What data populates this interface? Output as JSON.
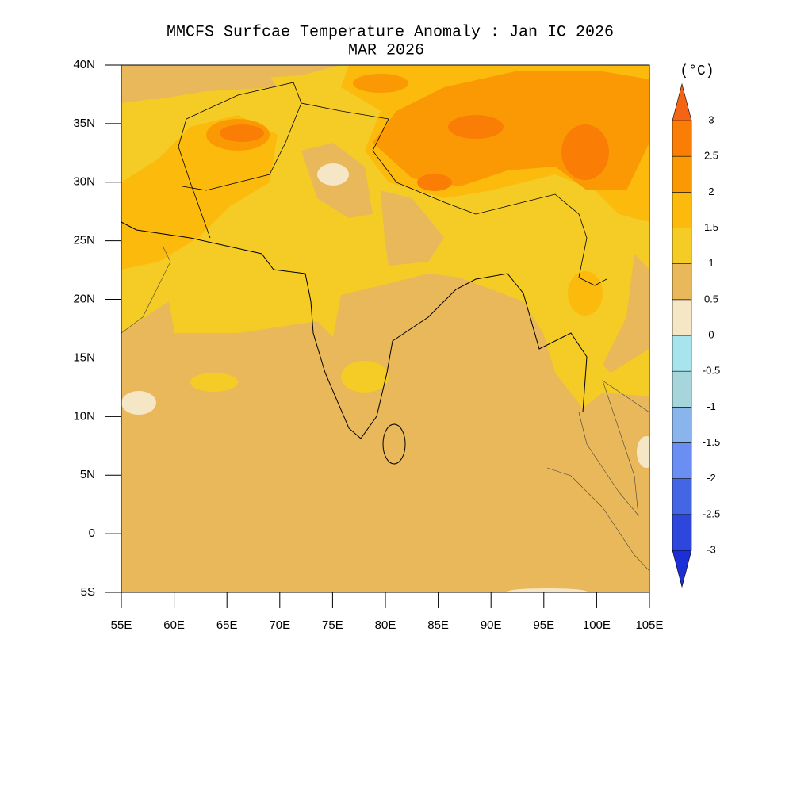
{
  "map": {
    "title": "MMCFS Surfcae Temperature Anomaly : Jan IC 2026",
    "subtitle": "MAR 2026",
    "xlim": [
      55,
      105
    ],
    "ylim": [
      -5,
      40
    ],
    "xticks": [
      {
        "value": 55,
        "label": "55E"
      },
      {
        "value": 60,
        "label": "60E"
      },
      {
        "value": 65,
        "label": "65E"
      },
      {
        "value": 70,
        "label": "70E"
      },
      {
        "value": 75,
        "label": "75E"
      },
      {
        "value": 80,
        "label": "80E"
      },
      {
        "value": 85,
        "label": "85E"
      },
      {
        "value": 90,
        "label": "90E"
      },
      {
        "value": 95,
        "label": "95E"
      },
      {
        "value": 100,
        "label": "100E"
      },
      {
        "value": 105,
        "label": "105E"
      }
    ],
    "yticks": [
      {
        "value": 40,
        "label": "40N"
      },
      {
        "value": 35,
        "label": "35N"
      },
      {
        "value": 30,
        "label": "30N"
      },
      {
        "value": 25,
        "label": "25N"
      },
      {
        "value": 20,
        "label": "20N"
      },
      {
        "value": 15,
        "label": "15N"
      },
      {
        "value": 10,
        "label": "10N"
      },
      {
        "value": 5,
        "label": "5N"
      },
      0,
      {
        "value": -5,
        "label": "5S"
      }
    ],
    "colorbar": {
      "title": "(°C)",
      "levels": [
        -3,
        -2.5,
        -2,
        -1.5,
        -1,
        -0.5,
        0,
        0.5,
        1,
        1.5,
        2,
        2.5,
        3
      ],
      "colors": [
        "#1c2fd6",
        "#2d47dc",
        "#4566e4",
        "#6a8ef2",
        "#8ab4ec",
        "#a6d6dc",
        "#a8e4ee",
        "#f5e7c6",
        "#e8b85a",
        "#f5cc25",
        "#fbba0c",
        "#fb9904",
        "#fa7e05",
        "#f46415"
      ]
    }
  }
}
